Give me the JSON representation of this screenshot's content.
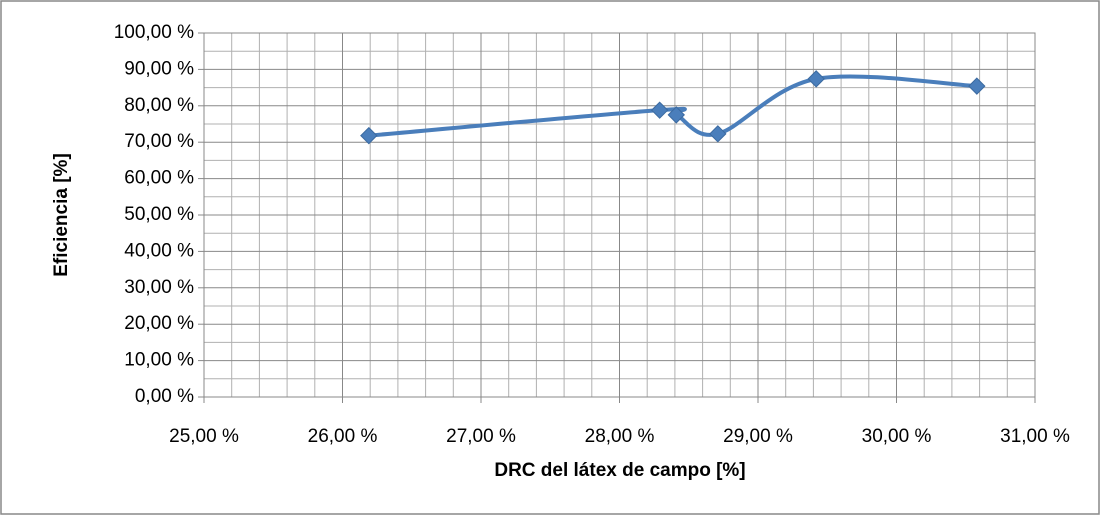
{
  "chart_data": {
    "type": "scatter",
    "x_label": "DRC del látex de campo [%]",
    "y_label": "Eficiencia [%]",
    "series": [
      {
        "color": "#4a7ebb",
        "x": [
          26.19,
          28.29,
          28.41,
          28.71,
          29.42,
          30.58
        ],
        "values": [
          71.8,
          78.8,
          77.5,
          72.3,
          87.4,
          85.4
        ]
      }
    ],
    "smooth": true,
    "xlim": [
      25,
      31
    ],
    "xticks": [
      {
        "value": 25,
        "label": "25,00 %"
      },
      {
        "value": 26,
        "label": "26,00 %"
      },
      {
        "value": 27,
        "label": "27,00 %"
      },
      {
        "value": 28,
        "label": "28,00 %"
      },
      {
        "value": 29,
        "label": "29,00 %"
      },
      {
        "value": 30,
        "label": "30,00 %"
      },
      {
        "value": 31,
        "label": "31,00 %"
      }
    ],
    "ylim": [
      0,
      100
    ],
    "yticks": [
      {
        "value": 0,
        "label": "0,00 %"
      },
      {
        "value": 10,
        "label": "10,00 %"
      },
      {
        "value": 20,
        "label": "20,00 %"
      },
      {
        "value": 30,
        "label": "30,00 %"
      },
      {
        "value": 40,
        "label": "40,00 %"
      },
      {
        "value": 50,
        "label": "50,00 %"
      },
      {
        "value": 60,
        "label": "60,00 %"
      },
      {
        "value": 70,
        "label": "70,00 %"
      },
      {
        "value": 80,
        "label": "80,00 %"
      },
      {
        "value": 90,
        "label": "90,00 %"
      },
      {
        "value": 100,
        "label": "100,00 %"
      }
    ],
    "grid": true,
    "minor_grid": {
      "x": 5,
      "y": 2
    }
  }
}
